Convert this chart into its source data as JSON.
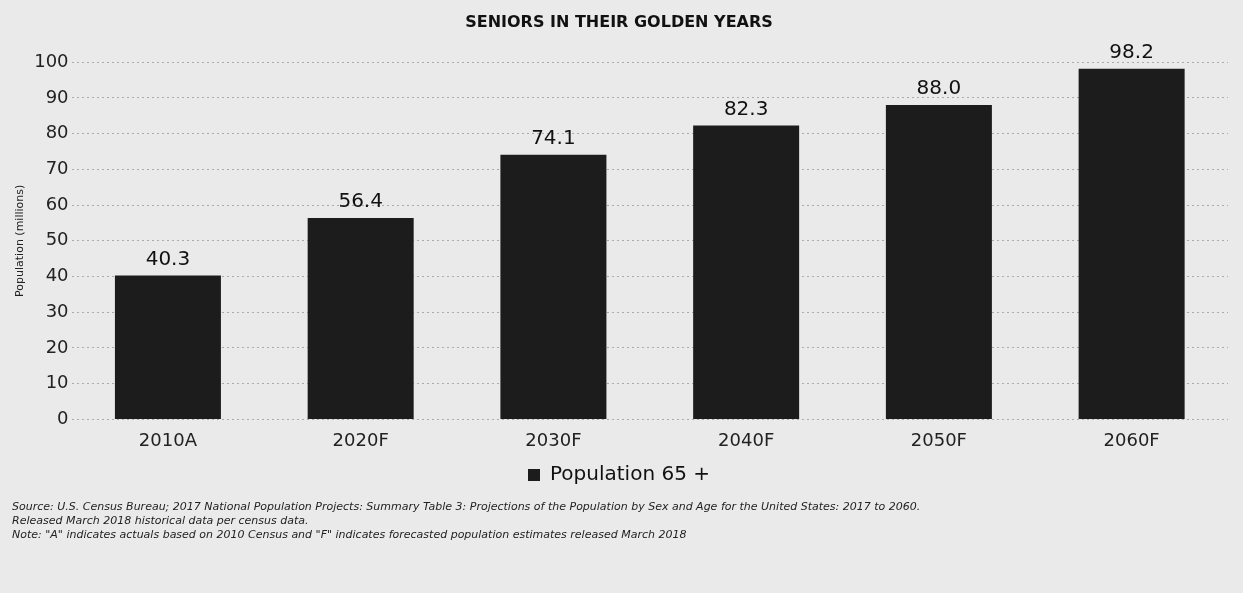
{
  "chart_data": {
    "type": "bar",
    "title": "SENIORS IN THEIR GOLDEN YEARS",
    "ylabel": "Population (millions)",
    "categories": [
      "2010A",
      "2020F",
      "2030F",
      "2040F",
      "2050F",
      "2060F"
    ],
    "series": [
      {
        "name": "Population 65 +",
        "color": "#1c1c1c",
        "values": [
          40.3,
          56.4,
          74.1,
          82.3,
          88.0,
          98.2
        ]
      }
    ],
    "value_labels": [
      "40.3",
      "56.4",
      "74.1",
      "82.3",
      "88.0",
      "98.2"
    ],
    "ylim": [
      0,
      100
    ],
    "yticks": [
      0,
      10,
      20,
      30,
      40,
      50,
      60,
      70,
      80,
      90,
      100
    ],
    "grid": "y",
    "legend": "bottom",
    "annotations": [
      "Source: U.S. Census Bureau; 2017 National Population Projects: Summary Table 3: Projections of the Population by Sex and Age for the United States: 2017 to 2060.",
      "Released March 2018 historical data per census data.",
      "Note: \"A\" indicates actuals based on 2010 Census and \"F\" indicates forecasted population estimates released March 2018"
    ]
  }
}
